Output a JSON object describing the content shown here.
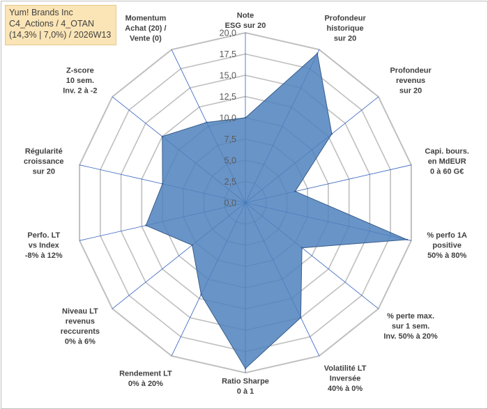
{
  "title_box": {
    "line1": "Yum! Brands Inc",
    "line2": "C4_Actions / 4_OTAN",
    "line3": "(14,3% | 7,0%) / 2026W13"
  },
  "chart_data": {
    "type": "radar",
    "title": "Yum! Brands Inc",
    "range": [
      0,
      20
    ],
    "ticks": [
      "0,0",
      "2,5",
      "5,0",
      "7,5",
      "10,0",
      "12,5",
      "15,0",
      "17,5",
      "20,0"
    ],
    "axes": [
      [
        "Note",
        "ESG sur 20"
      ],
      [
        "Profondeur",
        "historique",
        "sur 20"
      ],
      [
        "Profondeur",
        "revenus",
        "sur 20"
      ],
      [
        "Capi. bours.",
        "en MdEUR",
        "0 à 60 G€"
      ],
      [
        "% perfo 1A",
        "positive",
        "50% à 80%"
      ],
      [
        "% perte max.",
        "sur 1 sem.",
        "Inv. 50% à 20%"
      ],
      [
        "Volatilité LT",
        "Inversée",
        "40% à 0%"
      ],
      [
        "Ratio Sharpe",
        "0 à 1"
      ],
      [
        "Rendement LT",
        "0% à 20%"
      ],
      [
        "Niveau LT",
        "revenus",
        "reccurents",
        "0% à 6%"
      ],
      [
        "Perfo. LT",
        "vs Index",
        "-8% à 12%"
      ],
      [
        "Régularité",
        "croissance",
        "sur 20"
      ],
      [
        "Z-score",
        "10 sem.",
        "Inv. 2 à -2"
      ],
      [
        "Momentum",
        "Achat (20) /",
        "Vente (0)"
      ]
    ],
    "series": [
      {
        "name": "Yum! Brands Inc",
        "values": [
          10,
          19.5,
          13,
          6,
          19.5,
          8.5,
          15,
          19.5,
          12,
          8,
          12,
          10,
          12.5,
          10.5
        ]
      }
    ],
    "colors": {
      "fill": "#4f81bd",
      "stroke": "#385d8a",
      "grid": "#bfbfbf",
      "spoke": "#2f5fbf"
    }
  }
}
